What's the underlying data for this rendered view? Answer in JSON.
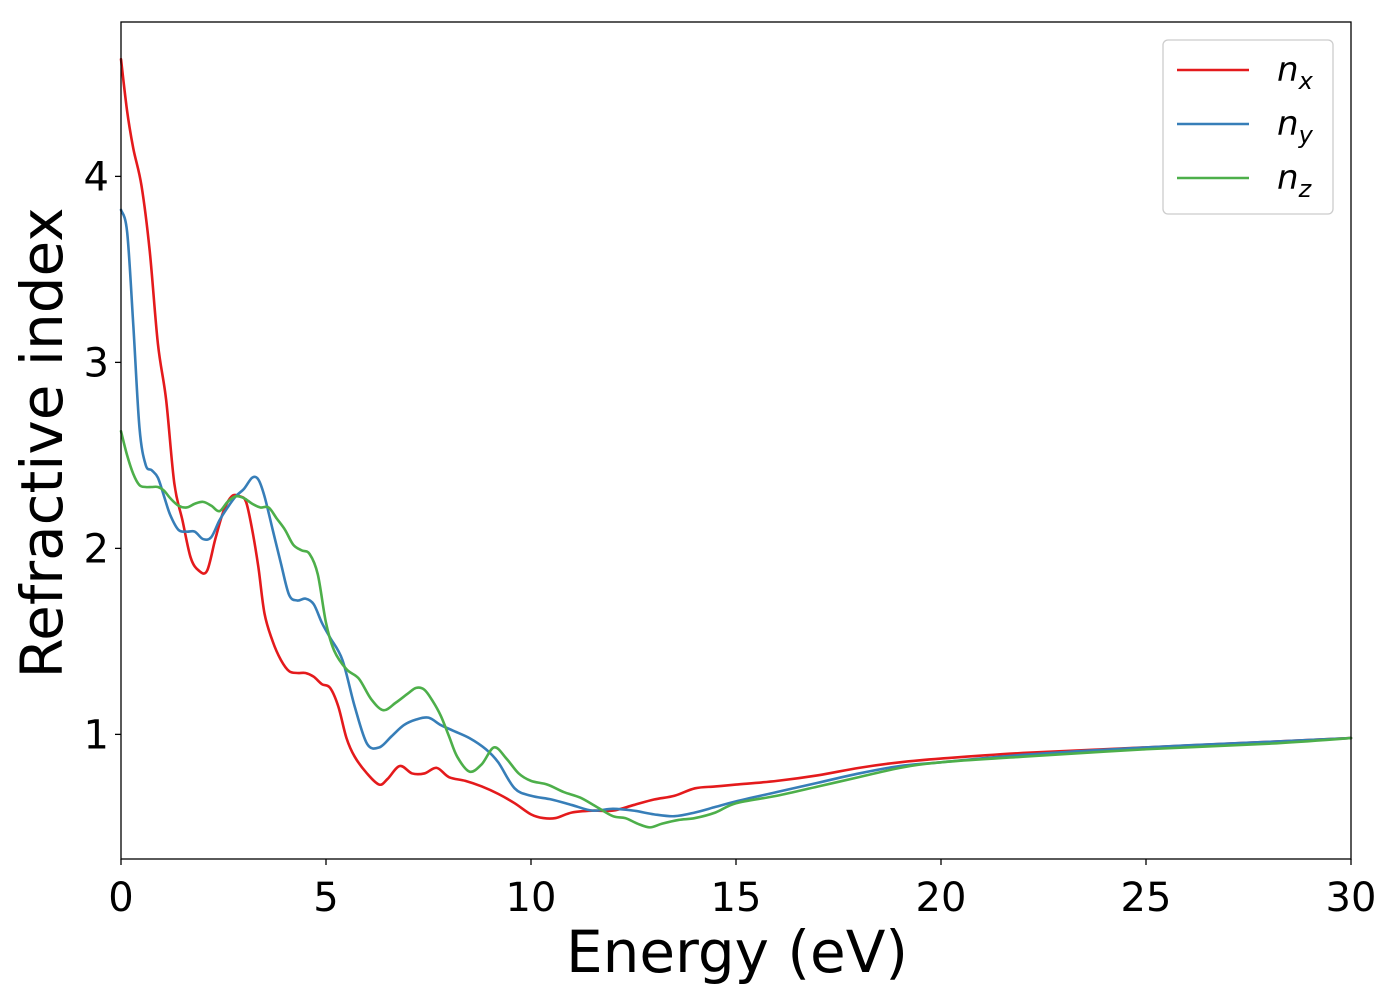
{
  "chart_data": {
    "type": "line",
    "title": "",
    "xlabel": "Energy (eV)",
    "ylabel": "Refractive index",
    "xlim": [
      0,
      30
    ],
    "ylim": [
      0.33,
      4.83
    ],
    "xticks": [
      0,
      5,
      10,
      15,
      20,
      25,
      30
    ],
    "xtick_labels": [
      "0",
      "5",
      "10",
      "15",
      "20",
      "25",
      "30"
    ],
    "yticks": [
      1,
      2,
      3,
      4
    ],
    "ytick_labels": [
      "1",
      "2",
      "3",
      "4"
    ],
    "grid": false,
    "legend_position": "top-right",
    "series": [
      {
        "name": "n",
        "sub": "x",
        "color": "#e41a1c",
        "x": [
          0,
          0.15,
          0.3,
          0.5,
          0.7,
          0.9,
          1.1,
          1.3,
          1.5,
          1.7,
          1.9,
          2.1,
          2.3,
          2.5,
          2.7,
          2.9,
          3.05,
          3.2,
          3.35,
          3.5,
          3.7,
          3.9,
          4.1,
          4.3,
          4.5,
          4.7,
          4.9,
          5.1,
          5.3,
          5.5,
          5.7,
          6.0,
          6.3,
          6.5,
          6.8,
          7.1,
          7.4,
          7.7,
          8.0,
          8.4,
          8.8,
          9.2,
          9.6,
          10.0,
          10.3,
          10.6,
          11.0,
          11.5,
          12.0,
          12.5,
          13.0,
          13.5,
          14.0,
          14.5,
          15.0,
          16.0,
          17.0,
          18.0,
          19.0,
          20.0,
          22.0,
          25.0,
          28.0,
          30.0
        ],
        "y": [
          4.63,
          4.35,
          4.15,
          3.95,
          3.6,
          3.1,
          2.8,
          2.35,
          2.15,
          1.95,
          1.88,
          1.88,
          2.05,
          2.2,
          2.28,
          2.28,
          2.25,
          2.1,
          1.9,
          1.65,
          1.5,
          1.4,
          1.34,
          1.33,
          1.33,
          1.31,
          1.27,
          1.25,
          1.15,
          0.98,
          0.88,
          0.79,
          0.73,
          0.76,
          0.83,
          0.79,
          0.79,
          0.82,
          0.77,
          0.75,
          0.72,
          0.68,
          0.63,
          0.57,
          0.55,
          0.55,
          0.58,
          0.59,
          0.59,
          0.62,
          0.65,
          0.67,
          0.71,
          0.72,
          0.73,
          0.75,
          0.78,
          0.82,
          0.85,
          0.87,
          0.9,
          0.93,
          0.96,
          0.98
        ]
      },
      {
        "name": "n",
        "sub": "y",
        "color": "#377eb8",
        "x": [
          0,
          0.15,
          0.3,
          0.45,
          0.6,
          0.75,
          0.9,
          1.05,
          1.2,
          1.4,
          1.6,
          1.8,
          2.0,
          2.2,
          2.4,
          2.6,
          2.8,
          3.0,
          3.2,
          3.35,
          3.5,
          3.7,
          3.9,
          4.1,
          4.3,
          4.5,
          4.7,
          4.9,
          5.1,
          5.4,
          5.7,
          6.0,
          6.3,
          6.6,
          6.9,
          7.2,
          7.5,
          7.8,
          8.1,
          8.5,
          8.9,
          9.2,
          9.6,
          10.0,
          10.5,
          11.0,
          11.5,
          12.0,
          12.5,
          13.0,
          13.5,
          14.0,
          14.5,
          15.0,
          16.0,
          17.0,
          18.0,
          19.0,
          20.0,
          22.0,
          25.0,
          28.0,
          30.0
        ],
        "y": [
          3.82,
          3.7,
          3.2,
          2.65,
          2.45,
          2.42,
          2.38,
          2.28,
          2.18,
          2.1,
          2.09,
          2.09,
          2.05,
          2.06,
          2.15,
          2.22,
          2.28,
          2.32,
          2.38,
          2.37,
          2.28,
          2.1,
          1.92,
          1.75,
          1.72,
          1.73,
          1.7,
          1.6,
          1.52,
          1.4,
          1.15,
          0.95,
          0.93,
          0.99,
          1.05,
          1.08,
          1.09,
          1.05,
          1.02,
          0.98,
          0.92,
          0.85,
          0.71,
          0.67,
          0.65,
          0.62,
          0.59,
          0.6,
          0.59,
          0.57,
          0.56,
          0.58,
          0.61,
          0.64,
          0.69,
          0.74,
          0.79,
          0.83,
          0.85,
          0.89,
          0.93,
          0.96,
          0.98
        ]
      },
      {
        "name": "n",
        "sub": "z",
        "color": "#4daf4a",
        "x": [
          0,
          0.15,
          0.3,
          0.45,
          0.6,
          0.75,
          0.9,
          1.05,
          1.2,
          1.4,
          1.6,
          1.8,
          2.0,
          2.2,
          2.4,
          2.6,
          2.8,
          3.0,
          3.2,
          3.4,
          3.6,
          3.8,
          4.0,
          4.2,
          4.4,
          4.6,
          4.8,
          5.0,
          5.2,
          5.5,
          5.8,
          6.1,
          6.4,
          6.7,
          7.0,
          7.2,
          7.4,
          7.6,
          7.8,
          8.0,
          8.2,
          8.5,
          8.8,
          9.1,
          9.4,
          9.7,
          10.0,
          10.4,
          10.8,
          11.2,
          11.6,
          12.0,
          12.3,
          12.6,
          12.9,
          13.2,
          13.6,
          14.0,
          14.5,
          15.0,
          16.0,
          17.0,
          18.0,
          19.0,
          20.0,
          22.0,
          25.0,
          28.0,
          30.0
        ],
        "y": [
          2.63,
          2.5,
          2.4,
          2.34,
          2.33,
          2.33,
          2.33,
          2.31,
          2.27,
          2.23,
          2.22,
          2.24,
          2.25,
          2.23,
          2.2,
          2.25,
          2.28,
          2.27,
          2.24,
          2.22,
          2.22,
          2.16,
          2.1,
          2.02,
          1.99,
          1.97,
          1.86,
          1.6,
          1.45,
          1.35,
          1.3,
          1.19,
          1.13,
          1.17,
          1.22,
          1.25,
          1.24,
          1.18,
          1.1,
          0.99,
          0.88,
          0.8,
          0.84,
          0.93,
          0.87,
          0.79,
          0.75,
          0.73,
          0.69,
          0.66,
          0.61,
          0.56,
          0.55,
          0.52,
          0.5,
          0.52,
          0.54,
          0.55,
          0.58,
          0.63,
          0.67,
          0.72,
          0.77,
          0.82,
          0.85,
          0.88,
          0.92,
          0.95,
          0.98
        ]
      }
    ]
  }
}
